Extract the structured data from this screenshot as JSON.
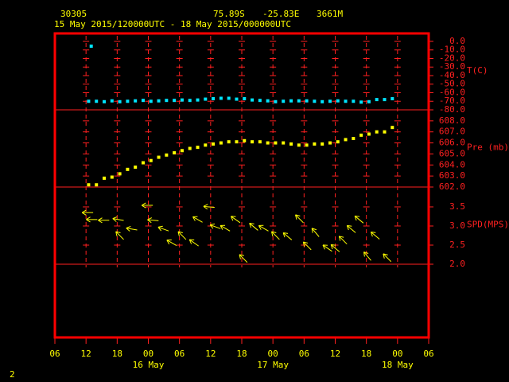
{
  "header": {
    "station": "30305",
    "lat": "75.89S",
    "lon": "-25.83E",
    "elev": "3661M",
    "period": "15 May 2015/120000UTC - 18 May 2015/000000UTC"
  },
  "page_number": "2",
  "x_axis": {
    "xlim": [
      0,
      72
    ],
    "xticks": [
      {
        "value": 0,
        "label": "06"
      },
      {
        "value": 6,
        "label": "12"
      },
      {
        "value": 12,
        "label": "18"
      },
      {
        "value": 18,
        "label": "00"
      },
      {
        "value": 24,
        "label": "06"
      },
      {
        "value": 30,
        "label": "12"
      },
      {
        "value": 36,
        "label": "18"
      },
      {
        "value": 42,
        "label": "00"
      },
      {
        "value": 48,
        "label": "06"
      },
      {
        "value": 54,
        "label": "12"
      },
      {
        "value": 60,
        "label": "18"
      },
      {
        "value": 66,
        "label": "00"
      },
      {
        "value": 72,
        "label": "06"
      }
    ],
    "date_labels": [
      {
        "value": 18,
        "label": "16 May"
      },
      {
        "value": 42,
        "label": "17 May"
      },
      {
        "value": 66,
        "label": "18 May"
      }
    ]
  },
  "chart_data": [
    {
      "type": "scatter",
      "ylabel": "T(C)",
      "color": "#00e5ff",
      "ylim": [
        -80,
        9.3
      ],
      "yticks": [
        {
          "value": 0,
          "label": "0.0"
        },
        {
          "value": -10,
          "label": "-10.0"
        },
        {
          "value": -20,
          "label": "-20.0"
        },
        {
          "value": -30,
          "label": "-30.0"
        },
        {
          "value": -40,
          "label": "-40.0"
        },
        {
          "value": -50,
          "label": "-50.0"
        },
        {
          "value": -60,
          "label": "-60.0"
        },
        {
          "value": -70,
          "label": "-70.0"
        },
        {
          "value": -80,
          "label": "-80.0"
        }
      ],
      "x": [
        6.5,
        7,
        8,
        9.5,
        11,
        12.5,
        14,
        15.5,
        17,
        18.5,
        20,
        21.5,
        23,
        24.5,
        26,
        27.5,
        29,
        30.5,
        32,
        33.5,
        35,
        36.5,
        38,
        39.5,
        41,
        42.5,
        44,
        45.5,
        47,
        48.5,
        50,
        51.5,
        53,
        54.5,
        56,
        57.5,
        59,
        60.5,
        62,
        63.5,
        65
      ],
      "values": [
        -70,
        -5.6,
        -70,
        -70.5,
        -69.5,
        -70.5,
        -70,
        -69.5,
        -69,
        -70,
        -69.5,
        -69,
        -69,
        -68.5,
        -69,
        -68.5,
        -67.5,
        -67,
        -66.5,
        -66.5,
        -67.5,
        -67,
        -68.5,
        -69,
        -69.5,
        -70.5,
        -70,
        -69.5,
        -69.5,
        -69.5,
        -70,
        -70.5,
        -70,
        -69.5,
        -70,
        -70,
        -71,
        -70.5,
        -68,
        -68,
        -67
      ]
    },
    {
      "type": "scatter",
      "ylabel": "Pre (mb)",
      "color": "#ffff00",
      "ylim": [
        602,
        609
      ],
      "yticks": [
        {
          "value": 602,
          "label": "602.0"
        },
        {
          "value": 603,
          "label": "603.0"
        },
        {
          "value": 604,
          "label": "604.0"
        },
        {
          "value": 605,
          "label": "605.0"
        },
        {
          "value": 606,
          "label": "606.0"
        },
        {
          "value": 607,
          "label": "607.0"
        },
        {
          "value": 608,
          "label": "608.0"
        }
      ],
      "x": [
        6.5,
        8,
        9.5,
        11,
        12.5,
        14,
        15.5,
        17,
        18.5,
        20,
        21.5,
        23,
        24.5,
        26,
        27.5,
        29,
        30.5,
        32,
        33.5,
        35,
        36.5,
        38,
        39.5,
        41,
        42.5,
        44,
        45.5,
        47,
        48.5,
        50,
        51.5,
        53,
        54.5,
        56,
        57.5,
        59,
        60.5,
        62,
        63.5,
        65
      ],
      "values": [
        602.2,
        602.2,
        602.8,
        602.9,
        603.2,
        603.6,
        603.8,
        604.2,
        604.4,
        604.7,
        604.9,
        605.1,
        605.3,
        605.5,
        605.6,
        605.8,
        605.9,
        606.0,
        606.1,
        606.1,
        606.2,
        606.1,
        606.1,
        606.0,
        606.0,
        606.0,
        605.9,
        605.8,
        605.8,
        605.9,
        605.9,
        606.0,
        606.1,
        606.3,
        606.4,
        606.7,
        606.8,
        607.0,
        607.0,
        607.4
      ]
    },
    {
      "type": "wind",
      "ylabel": "SPD(MPS)",
      "color": "#ffff00",
      "ylim": [
        2,
        4.02
      ],
      "yticks": [
        {
          "value": 2,
          "label": "2.0"
        },
        {
          "value": 2.5,
          "label": "2.5"
        },
        {
          "value": 3,
          "label": "3.0"
        },
        {
          "value": 3.5,
          "label": "3.5"
        }
      ],
      "x": [
        6.3,
        7.1,
        9.4,
        12.2,
        12.5,
        14.8,
        17.8,
        18.9,
        20.9,
        22.5,
        24.5,
        26.8,
        27.5,
        29.7,
        30.9,
        32.8,
        34.8,
        36.3,
        38.3,
        40.2,
        42.5,
        44.8,
        47.1,
        48.6,
        50.2,
        52.5,
        54,
        55.5,
        57.1,
        58.6,
        60.2,
        61.7,
        64
      ],
      "values": [
        3.35,
        3.17,
        3.15,
        3.17,
        2.75,
        2.92,
        3.54,
        3.15,
        2.92,
        2.56,
        2.75,
        2.56,
        3.17,
        3.5,
        2.98,
        2.94,
        3.17,
        2.15,
        2.98,
        2.94,
        2.75,
        2.73,
        3.19,
        2.48,
        2.83,
        2.42,
        2.42,
        2.63,
        2.92,
        3.17,
        2.21,
        2.75,
        2.17
      ],
      "directions": [
        90,
        90,
        90,
        100,
        135,
        100,
        90,
        95,
        110,
        120,
        135,
        125,
        120,
        95,
        110,
        120,
        125,
        135,
        130,
        120,
        135,
        130,
        135,
        135,
        140,
        125,
        130,
        135,
        130,
        130,
        140,
        130,
        135
      ]
    }
  ]
}
